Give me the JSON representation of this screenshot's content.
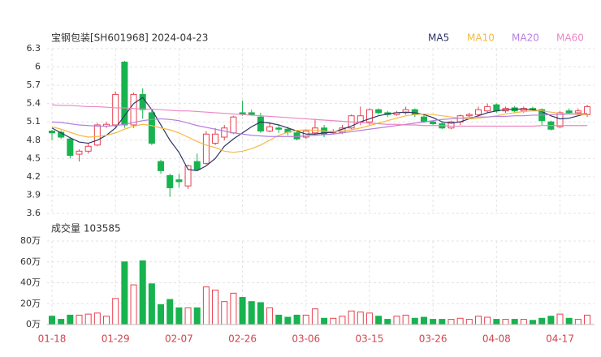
{
  "chart_data": [
    {
      "type": "candlestick",
      "title": "宝钢包装[SH601968] 2024-04-23",
      "up_color": "#e8414f",
      "down_color": "#17b34e",
      "open": [
        4.95,
        4.93,
        4.82,
        4.57,
        4.62,
        4.72,
        5.03,
        5.05,
        6.08,
        5.05,
        5.55,
        5.25,
        4.45,
        4.22,
        4.15,
        4.05,
        4.45,
        4.42,
        4.75,
        4.85,
        4.92,
        5.25,
        5.25,
        5.18,
        4.95,
        5.0,
        4.98,
        4.92,
        4.85,
        4.92,
        5.0,
        4.92,
        4.93,
        5.0,
        5.1,
        5.1,
        5.3,
        5.25,
        5.22,
        5.25,
        5.3,
        5.18,
        5.1,
        5.07,
        5.0,
        5.1,
        5.2,
        5.22,
        5.28,
        5.38,
        5.28,
        5.33,
        5.28,
        5.32,
        5.3,
        5.1,
        5.02,
        5.28,
        5.25,
        5.22
      ],
      "high": [
        4.97,
        4.96,
        4.85,
        4.65,
        4.75,
        5.08,
        5.1,
        5.6,
        6.1,
        5.58,
        5.65,
        5.3,
        4.48,
        4.25,
        4.25,
        4.4,
        4.58,
        4.95,
        5.0,
        5.05,
        5.2,
        5.45,
        5.3,
        5.25,
        5.1,
        5.05,
        5.02,
        4.95,
        4.98,
        5.15,
        5.05,
        4.98,
        5.05,
        5.22,
        5.35,
        5.32,
        5.32,
        5.28,
        5.28,
        5.35,
        5.32,
        5.22,
        5.12,
        5.1,
        5.12,
        5.22,
        5.25,
        5.35,
        5.4,
        5.4,
        5.35,
        5.36,
        5.35,
        5.35,
        5.32,
        5.12,
        5.28,
        5.32,
        5.32,
        5.38
      ],
      "low": [
        4.8,
        4.82,
        4.5,
        4.45,
        4.58,
        4.7,
        5.0,
        5.0,
        5.0,
        5.0,
        5.15,
        4.72,
        4.25,
        3.87,
        4.02,
        4.0,
        4.3,
        4.4,
        4.72,
        4.8,
        4.9,
        5.2,
        5.2,
        4.92,
        4.93,
        4.92,
        4.88,
        4.8,
        4.82,
        4.88,
        4.85,
        4.9,
        4.9,
        4.98,
        5.05,
        5.05,
        5.22,
        5.18,
        5.2,
        5.22,
        5.18,
        5.08,
        5.05,
        4.98,
        4.98,
        5.05,
        5.18,
        5.2,
        5.25,
        5.25,
        5.25,
        5.25,
        5.25,
        5.28,
        5.05,
        4.96,
        5.0,
        5.22,
        5.22,
        5.18
      ],
      "close": [
        4.92,
        4.85,
        4.55,
        4.62,
        4.7,
        5.05,
        5.06,
        5.55,
        5.05,
        5.55,
        5.3,
        4.75,
        4.3,
        4.02,
        4.12,
        4.38,
        4.32,
        4.9,
        4.9,
        5.0,
        5.18,
        5.23,
        5.22,
        4.95,
        5.02,
        4.98,
        4.93,
        4.82,
        4.95,
        5.0,
        4.9,
        4.94,
        5.0,
        5.2,
        5.2,
        5.3,
        5.25,
        5.22,
        5.25,
        5.3,
        5.22,
        5.1,
        5.07,
        5.0,
        5.1,
        5.2,
        5.22,
        5.3,
        5.35,
        5.28,
        5.32,
        5.28,
        5.32,
        5.3,
        5.12,
        4.98,
        5.25,
        5.25,
        5.28,
        5.35
      ],
      "series": [
        {
          "name": "MA5",
          "color": "#2c3566",
          "values": [
            5.0,
            4.92,
            4.84,
            4.77,
            4.75,
            4.8,
            4.88,
            5.0,
            5.2,
            5.4,
            5.5,
            5.3,
            5.05,
            4.8,
            4.6,
            4.32,
            4.3,
            4.38,
            4.5,
            4.7,
            4.82,
            4.92,
            5.02,
            5.1,
            5.08,
            5.05,
            5.0,
            4.95,
            4.9,
            4.9,
            4.92,
            4.93,
            4.98,
            5.03,
            5.1,
            5.15,
            5.2,
            5.23,
            5.25,
            5.26,
            5.25,
            5.22,
            5.17,
            5.1,
            5.08,
            5.1,
            5.15,
            5.2,
            5.25,
            5.28,
            5.3,
            5.31,
            5.31,
            5.3,
            5.27,
            5.2,
            5.15,
            5.16,
            5.2,
            5.24
          ]
        },
        {
          "name": "MA10",
          "color": "#f5b942",
          "values": [
            5.02,
            4.98,
            4.93,
            4.88,
            4.85,
            4.86,
            4.88,
            4.92,
            4.98,
            5.03,
            5.06,
            5.04,
            5.0,
            4.97,
            4.92,
            4.85,
            4.78,
            4.72,
            4.68,
            4.62,
            4.6,
            4.62,
            4.66,
            4.72,
            4.8,
            4.88,
            4.93,
            4.96,
            4.97,
            4.96,
            4.95,
            4.94,
            4.95,
            4.97,
            5.0,
            5.04,
            5.08,
            5.12,
            5.16,
            5.2,
            5.22,
            5.23,
            5.22,
            5.2,
            5.18,
            5.16,
            5.15,
            5.16,
            5.18,
            5.2,
            5.23,
            5.25,
            5.27,
            5.28,
            5.28,
            5.26,
            5.24,
            5.23,
            5.22,
            5.22
          ]
        },
        {
          "name": "MA20",
          "color": "#b77fdf",
          "values": [
            5.1,
            5.09,
            5.07,
            5.05,
            5.04,
            5.03,
            5.03,
            5.04,
            5.06,
            5.09,
            5.12,
            5.14,
            5.15,
            5.14,
            5.12,
            5.08,
            5.04,
            5.01,
            4.98,
            4.95,
            4.92,
            4.9,
            4.88,
            4.87,
            4.86,
            4.86,
            4.86,
            4.86,
            4.87,
            4.88,
            4.89,
            4.9,
            4.92,
            4.94,
            4.96,
            4.98,
            5.0,
            5.02,
            5.04,
            5.06,
            5.08,
            5.1,
            5.12,
            5.14,
            5.15,
            5.16,
            5.17,
            5.18,
            5.18,
            5.19,
            5.19,
            5.2,
            5.2,
            5.21,
            5.21,
            5.22,
            5.22,
            5.23,
            5.23,
            5.24
          ]
        },
        {
          "name": "MA60",
          "color": "#eb86c4",
          "values": [
            5.38,
            5.37,
            5.37,
            5.36,
            5.35,
            5.35,
            5.34,
            5.33,
            5.33,
            5.32,
            5.31,
            5.31,
            5.3,
            5.29,
            5.28,
            5.28,
            5.27,
            5.26,
            5.25,
            5.24,
            5.23,
            5.22,
            5.21,
            5.2,
            5.19,
            5.18,
            5.17,
            5.16,
            5.15,
            5.14,
            5.13,
            5.12,
            5.11,
            5.1,
            5.09,
            5.08,
            5.07,
            5.06,
            5.06,
            5.05,
            5.05,
            5.04,
            5.04,
            5.04,
            5.03,
            5.03,
            5.03,
            5.03,
            5.03,
            5.03,
            5.03,
            5.03,
            5.03,
            5.03,
            5.04,
            5.04,
            5.04,
            5.04,
            5.04,
            5.04
          ]
        }
      ],
      "ylim": [
        3.6,
        6.3
      ],
      "yticks": [
        6.3,
        6,
        5.7,
        5.4,
        5.1,
        4.8,
        4.5,
        4.2,
        3.9,
        3.6
      ],
      "grid": true
    },
    {
      "type": "bar",
      "title": "成交量 103585",
      "categories": [
        "01-18",
        null,
        null,
        null,
        null,
        null,
        null,
        "01-29",
        null,
        null,
        null,
        null,
        null,
        null,
        "02-07",
        null,
        null,
        null,
        null,
        null,
        null,
        "02-26",
        null,
        null,
        null,
        null,
        null,
        null,
        "03-06",
        null,
        null,
        null,
        null,
        null,
        null,
        "03-15",
        null,
        null,
        null,
        null,
        null,
        null,
        "03-26",
        null,
        null,
        null,
        null,
        null,
        null,
        "04-08",
        null,
        null,
        null,
        null,
        null,
        null,
        "04-17",
        null,
        null,
        null
      ],
      "values": [
        8,
        5,
        9,
        9,
        10,
        11,
        8,
        25,
        60,
        38,
        61,
        39,
        19,
        24,
        16,
        16,
        16,
        36,
        33,
        22,
        30,
        26,
        22,
        21,
        16,
        9,
        7,
        9,
        9,
        15,
        6,
        6,
        8,
        13,
        12,
        11,
        8,
        5,
        8,
        9,
        6,
        7,
        5,
        5,
        5,
        6,
        5,
        8,
        7,
        5,
        5,
        5,
        5,
        4,
        6,
        8,
        10,
        6,
        5,
        9
      ],
      "ylim": [
        0,
        80
      ],
      "yticks": [
        {
          "value": 80,
          "label": "80万"
        },
        {
          "value": 60,
          "label": "60万"
        },
        {
          "value": 40,
          "label": "40万"
        },
        {
          "value": 20,
          "label": "20万"
        },
        {
          "value": 0,
          "label": "0万"
        }
      ],
      "grid": true
    }
  ]
}
